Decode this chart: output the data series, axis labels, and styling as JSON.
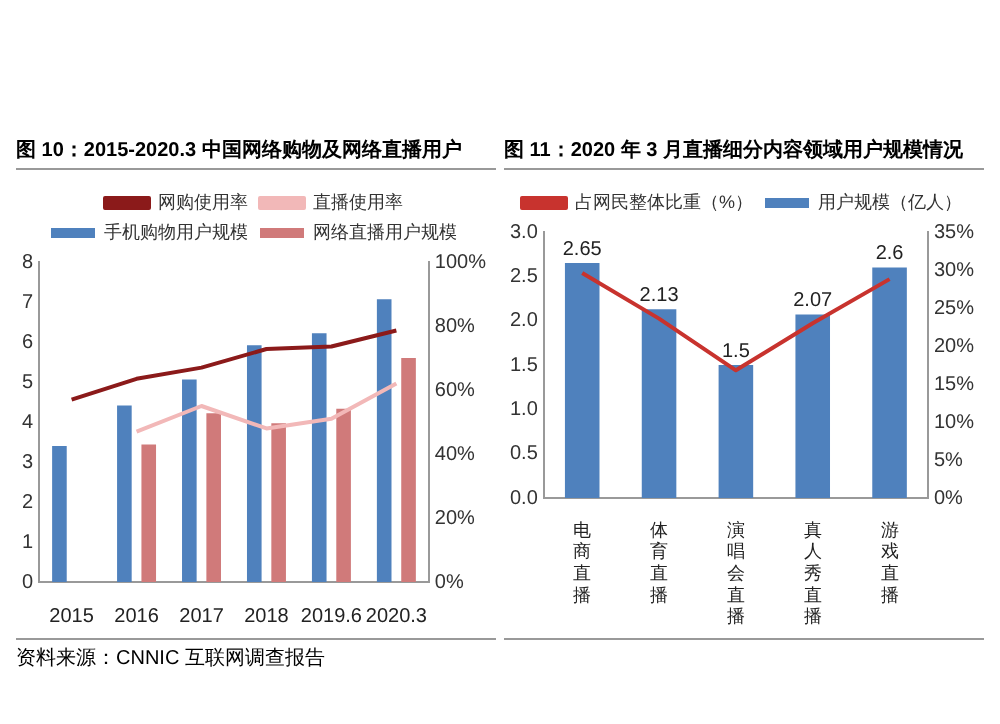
{
  "chart_data": [
    {
      "type": "bar",
      "title": "图 10：2015-2020.3 中国网络购物及网络直播用户",
      "categories": [
        "2015",
        "2016",
        "2017",
        "2018",
        "2019.6",
        "2020.3"
      ],
      "series": [
        {
          "name": "手机购物用户规模",
          "color": "#4f81bd",
          "values": [
            3.4,
            4.41,
            5.06,
            5.92,
            6.22,
            7.07
          ]
        },
        {
          "name": "网络直播用户规模",
          "color": "#d07a7a",
          "values": [
            null,
            3.44,
            4.22,
            3.97,
            4.33,
            5.6
          ]
        },
        {
          "name": "网购使用率",
          "type": "line",
          "axis": "y2",
          "color": "#8b1a1a",
          "values": [
            57,
            63.5,
            67,
            72.8,
            73.6,
            78.6
          ]
        },
        {
          "name": "直播使用率",
          "type": "line",
          "axis": "y2",
          "color": "#f2b8b8",
          "values": [
            null,
            47,
            55,
            48,
            51,
            62
          ]
        }
      ],
      "ylim": [
        0,
        8
      ],
      "yticks": [
        0,
        1,
        2,
        3,
        4,
        5,
        6,
        7,
        8
      ],
      "y2lim": [
        0,
        100
      ],
      "y2ticks": [
        {
          "value": 0,
          "label": "0%"
        },
        {
          "value": 20,
          "label": "20%"
        },
        {
          "value": 40,
          "label": "40%"
        },
        {
          "value": 60,
          "label": "60%"
        },
        {
          "value": 80,
          "label": "80%"
        },
        {
          "value": 100,
          "label": "100%"
        }
      ],
      "legend": "top",
      "grid": false,
      "marker": "none",
      "annotations": [
        "资料来源：CNNIC 互联网调查报告"
      ]
    },
    {
      "type": "bar",
      "title": "图 11：2020 年 3 月直播细分内容领域用户规模情况",
      "categories": [
        "电商直播",
        "体育直播",
        "演唱会直播",
        "真人秀直播",
        "游戏直播"
      ],
      "series": [
        {
          "name": "用户规模（亿人）",
          "color": "#4f81bd",
          "values": [
            2.65,
            2.13,
            1.5,
            2.07,
            2.6
          ],
          "value_labels": [
            "2.65",
            "2.13",
            "1.5",
            "2.07",
            "2.6"
          ]
        },
        {
          "name": "占网民整体比重（%）",
          "type": "line",
          "axis": "y2",
          "color": "#c8332e",
          "values": [
            29.6,
            23.6,
            16.8,
            23.0,
            28.8
          ]
        }
      ],
      "ylim": [
        0,
        3
      ],
      "yticks": [
        {
          "value": 0,
          "label": "0.0"
        },
        {
          "value": 0.5,
          "label": "0.5"
        },
        {
          "value": 1,
          "label": "1.0"
        },
        {
          "value": 1.5,
          "label": "1.5"
        },
        {
          "value": 2,
          "label": "2.0"
        },
        {
          "value": 2.5,
          "label": "2.5"
        },
        {
          "value": 3,
          "label": "3.0"
        }
      ],
      "y2lim": [
        0,
        35
      ],
      "y2ticks": [
        {
          "value": 0,
          "label": "0%"
        },
        {
          "value": 5,
          "label": "5%"
        },
        {
          "value": 10,
          "label": "10%"
        },
        {
          "value": 15,
          "label": "15%"
        },
        {
          "value": 20,
          "label": "20%"
        },
        {
          "value": 25,
          "label": "25%"
        },
        {
          "value": 30,
          "label": "30%"
        },
        {
          "value": 35,
          "label": "35%"
        }
      ],
      "legend": "top",
      "grid": false,
      "marker": "none"
    }
  ]
}
